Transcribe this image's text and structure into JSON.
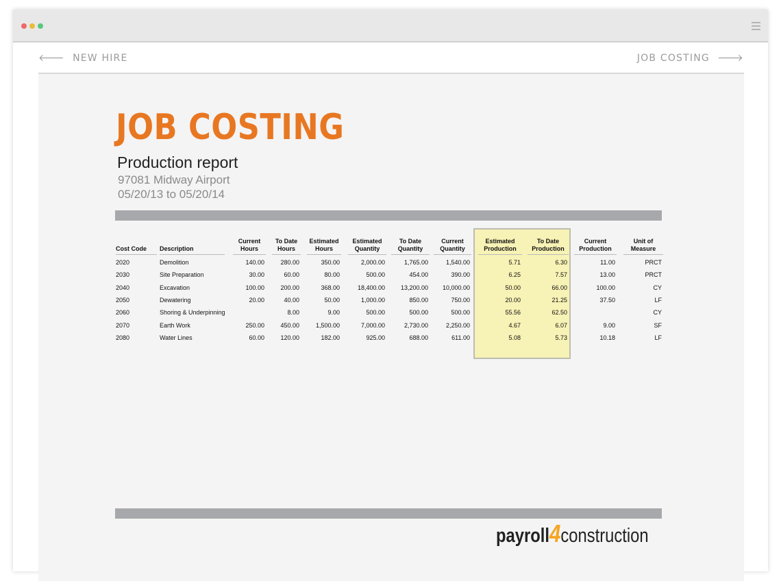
{
  "window": {
    "dots": [
      "#ec6a6a",
      "#e8bd3a",
      "#5cc67f"
    ]
  },
  "nav": {
    "prev_label": "NEW HIRE",
    "next_label": "JOB COSTING"
  },
  "report": {
    "title": "JOB COSTING",
    "subtitle": "Production report",
    "job": "97081 Midway Airport",
    "date_range": "05/20/13 to 05/20/14"
  },
  "colors": {
    "accent": "#e87722",
    "highlight": "#f7f2b5",
    "bar": "#a7a8ab"
  },
  "table": {
    "columns": [
      {
        "key": "code",
        "label": [
          "",
          "Cost Code"
        ]
      },
      {
        "key": "desc",
        "label": [
          "",
          "Description"
        ]
      },
      {
        "key": "cur_hours",
        "label": [
          "Current",
          "Hours"
        ]
      },
      {
        "key": "td_hours",
        "label": [
          "To Date",
          "Hours"
        ]
      },
      {
        "key": "est_hours",
        "label": [
          "Estimated",
          "Hours"
        ]
      },
      {
        "key": "est_qty",
        "label": [
          "Estimated",
          "Quantity"
        ]
      },
      {
        "key": "td_qty",
        "label": [
          "To Date",
          "Quantity"
        ]
      },
      {
        "key": "cur_qty",
        "label": [
          "Current",
          "Quantity"
        ]
      },
      {
        "key": "est_prod",
        "label": [
          "Estimated",
          "Production"
        ]
      },
      {
        "key": "td_prod",
        "label": [
          "To Date",
          "Production"
        ]
      },
      {
        "key": "cur_prod",
        "label": [
          "Current",
          "Production"
        ]
      },
      {
        "key": "uom",
        "label": [
          "Unit of",
          "Measure"
        ]
      }
    ],
    "highlighted_columns": [
      "Estimated Production",
      "To Date Production"
    ],
    "rows": [
      [
        "2020",
        "Demolition",
        "140.00",
        "280.00",
        "350.00",
        "2,000.00",
        "1,765.00",
        "1,540.00",
        "5.71",
        "6.30",
        "11.00",
        "PRCT"
      ],
      [
        "2030",
        "Site Preparation",
        "30.00",
        "60.00",
        "80.00",
        "500.00",
        "454.00",
        "390.00",
        "6.25",
        "7.57",
        "13.00",
        "PRCT"
      ],
      [
        "2040",
        "Excavation",
        "100.00",
        "200.00",
        "368.00",
        "18,400.00",
        "13,200.00",
        "10,000.00",
        "50.00",
        "66.00",
        "100.00",
        "CY"
      ],
      [
        "2050",
        "Dewatering",
        "20.00",
        "40.00",
        "50.00",
        "1,000.00",
        "850.00",
        "750.00",
        "20.00",
        "21.25",
        "37.50",
        "LF"
      ],
      [
        "2060",
        "Shoring & Underpinning",
        "",
        "8.00",
        "9.00",
        "500.00",
        "500.00",
        "500.00",
        "55.56",
        "62.50",
        "",
        "CY"
      ],
      [
        "2070",
        "Earth Work",
        "250.00",
        "450.00",
        "1,500.00",
        "7,000.00",
        "2,730.00",
        "2,250.00",
        "4.67",
        "6.07",
        "9.00",
        "SF"
      ],
      [
        "2080",
        "Water Lines",
        "60.00",
        "120.00",
        "182.00",
        "925.00",
        "688.00",
        "611.00",
        "5.08",
        "5.73",
        "10.18",
        "LF"
      ]
    ]
  },
  "logo": {
    "part1": "payroll",
    "part2": "4",
    "part3": "construction"
  }
}
